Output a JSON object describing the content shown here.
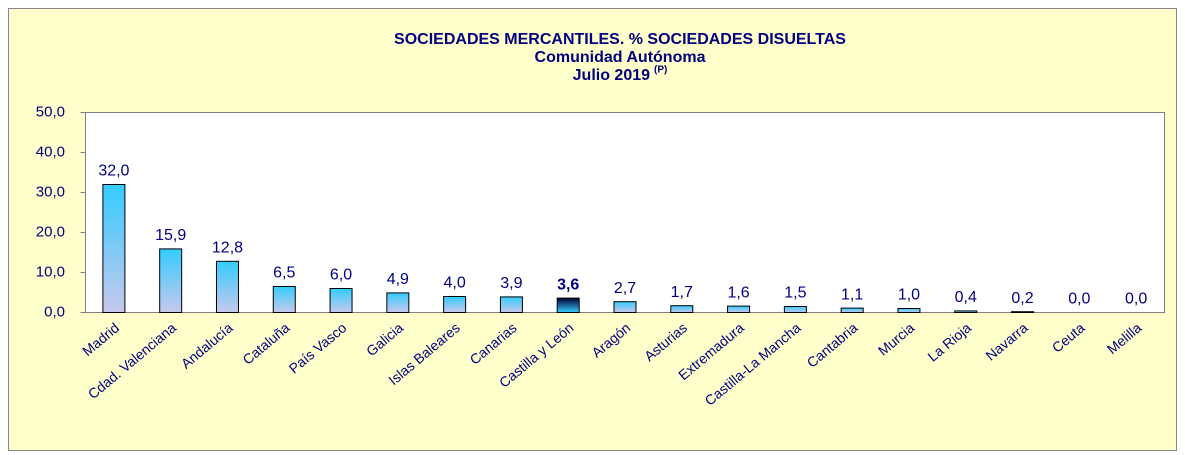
{
  "chart_data": {
    "type": "bar",
    "title": "SOCIEDADES MERCANTILES. % SOCIEDADES DISUELTAS",
    "subtitle": "Comunidad Autónoma",
    "subtitle_2": "Julio 2019",
    "subtitle_2_superscript": "(P)",
    "categories": [
      "Madrid",
      "Cdad. Valenciana",
      "Andalucía",
      "Cataluña",
      "País Vasco",
      "Galicia",
      "Islas Baleares",
      "Canarias",
      "Castilla y León",
      "Aragón",
      "Asturias",
      "Extremadura",
      "Castilla-La Mancha",
      "Cantabria",
      "Murcia",
      "La Rioja",
      "Navarra",
      "Ceuta",
      "Melilla"
    ],
    "values": [
      32.0,
      15.9,
      12.8,
      6.5,
      6.0,
      4.9,
      4.0,
      3.9,
      3.6,
      2.7,
      1.7,
      1.6,
      1.5,
      1.1,
      1.0,
      0.4,
      0.2,
      0.0,
      0.0
    ],
    "value_labels": [
      "32,0",
      "15,9",
      "12,8",
      "6,5",
      "6,0",
      "4,9",
      "4,0",
      "3,9",
      "3,6",
      "2,7",
      "1,7",
      "1,6",
      "1,5",
      "1,1",
      "1,0",
      "0,4",
      "0,2",
      "0,0",
      "0,0"
    ],
    "color": "#33ccff",
    "color_bottom": "#c8c8ec",
    "highlight": "Castilla y León",
    "highlight_color": "#000033",
    "ylim": [
      0,
      50
    ],
    "yticks": [
      {
        "value": 0,
        "label": "0,0"
      },
      {
        "value": 10,
        "label": "10,0"
      },
      {
        "value": 20,
        "label": "20,0"
      },
      {
        "value": 30,
        "label": "30,0"
      },
      {
        "value": 40,
        "label": "40,0"
      },
      {
        "value": 50,
        "label": "50,0"
      }
    ],
    "grid": false
  }
}
